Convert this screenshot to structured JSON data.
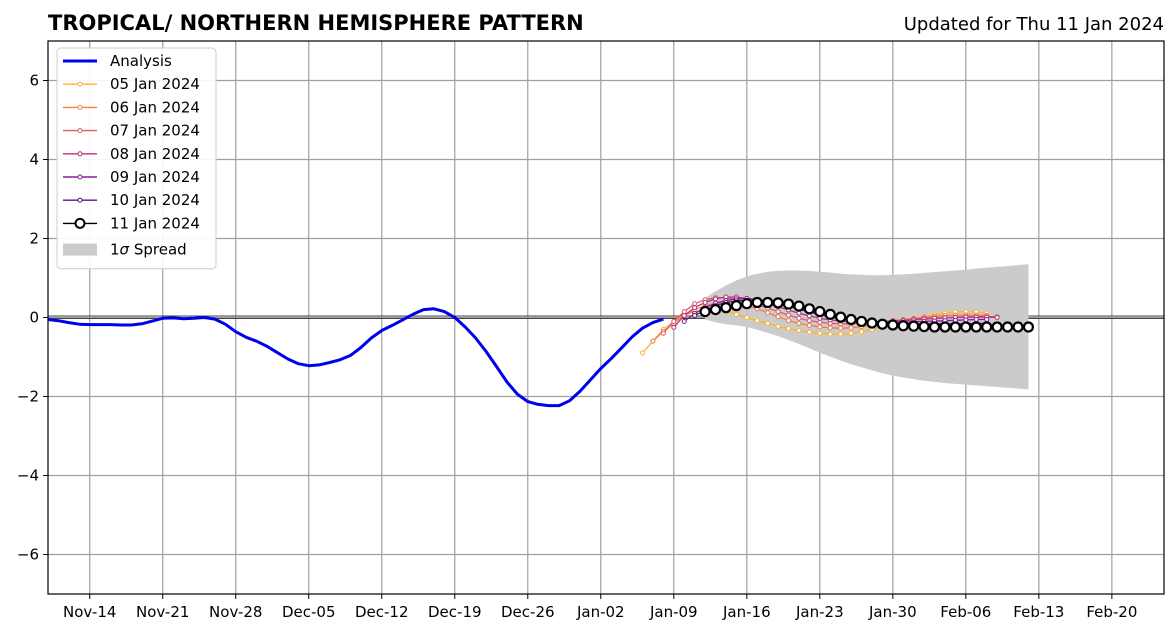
{
  "chart_data": {
    "type": "line",
    "title": "TROPICAL/ NORTHERN HEMISPHERE PATTERN",
    "subtitle": "Updated for Thu 11 Jan 2024",
    "xlabel": "",
    "ylabel": "",
    "xlim": [
      "2023-11-10",
      "2024-02-25"
    ],
    "ylim": [
      -7,
      7
    ],
    "grid": true,
    "legend_position": "top-left",
    "x_ticks": [
      "2023-11-14",
      "2023-11-21",
      "2023-11-28",
      "2023-12-05",
      "2023-12-12",
      "2023-12-19",
      "2023-12-26",
      "2024-01-02",
      "2024-01-09",
      "2024-01-16",
      "2024-01-23",
      "2024-01-30",
      "2024-02-06",
      "2024-02-13",
      "2024-02-20"
    ],
    "x_tick_labels": [
      "Nov-14",
      "Nov-21",
      "Nov-28",
      "Dec-05",
      "Dec-12",
      "Dec-19",
      "Dec-26",
      "Jan-02",
      "Jan-09",
      "Jan-16",
      "Jan-23",
      "Jan-30",
      "Feb-06",
      "Feb-13",
      "Feb-20"
    ],
    "y_ticks": [
      -6,
      -4,
      -2,
      0,
      2,
      4,
      6
    ],
    "y_tick_labels": [
      "−6",
      "−4",
      "−2",
      "0",
      "2",
      "4",
      "6"
    ],
    "series": [
      {
        "name": "Analysis",
        "color": "#0000ee",
        "marker": "none",
        "x_start": "2023-11-10",
        "values": [
          -0.05,
          -0.08,
          -0.13,
          -0.17,
          -0.18,
          -0.18,
          -0.18,
          -0.19,
          -0.19,
          -0.16,
          -0.09,
          -0.02,
          -0.01,
          -0.03,
          -0.02,
          0.0,
          -0.04,
          -0.17,
          -0.36,
          -0.5,
          -0.6,
          -0.73,
          -0.89,
          -1.05,
          -1.17,
          -1.22,
          -1.2,
          -1.14,
          -1.07,
          -0.96,
          -0.76,
          -0.52,
          -0.33,
          -0.2,
          -0.06,
          0.08,
          0.2,
          0.22,
          0.15,
          0.0,
          -0.24,
          -0.52,
          -0.86,
          -1.24,
          -1.63,
          -1.94,
          -2.13,
          -2.2,
          -2.23,
          -2.23,
          -2.11,
          -1.87,
          -1.58,
          -1.29,
          -1.04,
          -0.77,
          -0.49,
          -0.27,
          -0.13,
          -0.04
        ]
      },
      {
        "name": "05 Jan 2024",
        "color": "#fbb430",
        "marker": "dot",
        "x_start": "2024-01-06",
        "values": [
          -0.9,
          -0.6,
          -0.3,
          -0.1,
          0.05,
          0.15,
          0.2,
          0.2,
          0.15,
          0.08,
          0.0,
          -0.08,
          -0.15,
          -0.22,
          -0.28,
          -0.33,
          -0.37,
          -0.4,
          -0.42,
          -0.42,
          -0.4,
          -0.36,
          -0.3,
          -0.24,
          -0.17,
          -0.1,
          -0.04,
          0.02,
          0.07,
          0.11,
          0.14,
          0.15,
          0.14,
          0.12
        ]
      },
      {
        "name": "06 Jan 2024",
        "color": "#f37c4a",
        "marker": "dot",
        "x_start": "2024-01-07",
        "values": [
          -0.6,
          -0.35,
          -0.15,
          0.05,
          0.2,
          0.3,
          0.35,
          0.37,
          0.35,
          0.3,
          0.22,
          0.12,
          0.02,
          -0.08,
          -0.15,
          -0.2,
          -0.24,
          -0.26,
          -0.27,
          -0.26,
          -0.23,
          -0.19,
          -0.14,
          -0.09,
          -0.05,
          -0.02,
          0.01,
          0.03,
          0.05,
          0.06,
          0.06,
          0.06,
          0.05
        ]
      },
      {
        "name": "07 Jan 2024",
        "color": "#dd5c70",
        "marker": "dot",
        "x_start": "2024-01-08",
        "values": [
          -0.4,
          -0.1,
          0.15,
          0.35,
          0.45,
          0.5,
          0.5,
          0.46,
          0.4,
          0.32,
          0.24,
          0.15,
          0.06,
          -0.02,
          -0.08,
          -0.12,
          -0.15,
          -0.16,
          -0.16,
          -0.15,
          -0.13,
          -0.1,
          -0.08,
          -0.06,
          -0.04,
          -0.02,
          -0.01,
          0.0,
          0.01,
          0.02,
          0.02,
          0.02,
          0.02
        ]
      },
      {
        "name": "08 Jan 2024",
        "color": "#b5367a",
        "marker": "dot",
        "x_start": "2024-01-09",
        "values": [
          -0.25,
          0.05,
          0.25,
          0.38,
          0.47,
          0.52,
          0.52,
          0.48,
          0.42,
          0.35,
          0.27,
          0.19,
          0.11,
          0.04,
          -0.02,
          -0.06,
          -0.09,
          -0.11,
          -0.12,
          -0.12,
          -0.11,
          -0.09,
          -0.08,
          -0.06,
          -0.04,
          -0.02,
          -0.01,
          0.0,
          0.01,
          0.01,
          0.01,
          0.0
        ]
      },
      {
        "name": "09 Jan 2024",
        "color": "#8a1c9c",
        "marker": "dot",
        "x_start": "2024-01-10",
        "values": [
          -0.1,
          0.1,
          0.25,
          0.36,
          0.43,
          0.47,
          0.48,
          0.46,
          0.42,
          0.36,
          0.29,
          0.22,
          0.15,
          0.08,
          0.02,
          -0.03,
          -0.07,
          -0.1,
          -0.12,
          -0.13,
          -0.13,
          -0.12,
          -0.11,
          -0.1,
          -0.09,
          -0.08,
          -0.07,
          -0.06,
          -0.05,
          -0.05
        ]
      },
      {
        "name": "10 Jan 2024",
        "color": "#52148a",
        "marker": "dot",
        "x_start": "2024-01-11",
        "values": [
          0.05,
          0.18,
          0.3,
          0.38,
          0.42,
          0.43,
          0.42,
          0.39,
          0.34,
          0.28,
          0.21,
          0.14,
          0.07,
          0.01,
          -0.04,
          -0.08,
          -0.11,
          -0.13,
          -0.14,
          -0.15,
          -0.16,
          -0.16,
          -0.16,
          -0.16,
          -0.16,
          -0.16,
          -0.16,
          -0.15,
          -0.15
        ]
      },
      {
        "name": "11 Jan 2024",
        "color": "#000000",
        "marker": "circle",
        "x_start": "2024-01-12",
        "values": [
          0.15,
          0.2,
          0.25,
          0.3,
          0.35,
          0.38,
          0.38,
          0.37,
          0.34,
          0.29,
          0.22,
          0.15,
          0.08,
          0.01,
          -0.05,
          -0.1,
          -0.14,
          -0.17,
          -0.19,
          -0.21,
          -0.22,
          -0.23,
          -0.24,
          -0.24,
          -0.24,
          -0.24,
          -0.24,
          -0.24,
          -0.24,
          -0.24,
          -0.24,
          -0.24
        ]
      }
    ],
    "spread": {
      "name": "1σ Spread",
      "label_prefix": "1",
      "label_symbol": "σ",
      "label_suffix": " Spread",
      "color": "#cbcbcb",
      "x_start": "2024-01-12",
      "upper": [
        0.5,
        0.66,
        0.81,
        0.94,
        1.04,
        1.11,
        1.16,
        1.18,
        1.19,
        1.19,
        1.18,
        1.16,
        1.14,
        1.11,
        1.09,
        1.08,
        1.07,
        1.07,
        1.08,
        1.09,
        1.11,
        1.13,
        1.15,
        1.17,
        1.19,
        1.21,
        1.24,
        1.26,
        1.28,
        1.3,
        1.33,
        1.35
      ],
      "lower": [
        -0.05,
        -0.12,
        -0.17,
        -0.2,
        -0.24,
        -0.31,
        -0.39,
        -0.47,
        -0.57,
        -0.67,
        -0.78,
        -0.89,
        -0.99,
        -1.09,
        -1.18,
        -1.26,
        -1.34,
        -1.41,
        -1.47,
        -1.52,
        -1.56,
        -1.6,
        -1.63,
        -1.66,
        -1.68,
        -1.7,
        -1.72,
        -1.74,
        -1.76,
        -1.78,
        -1.8,
        -1.82
      ]
    }
  }
}
